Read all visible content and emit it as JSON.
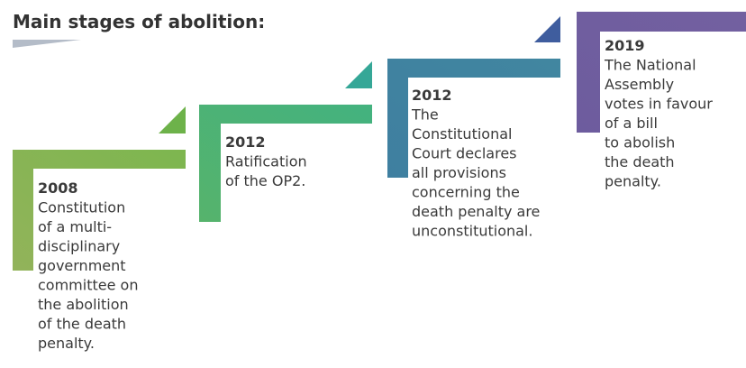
{
  "title": "Main stages of abolition:",
  "stages": [
    {
      "year": "2008",
      "lines": [
        "Constitution",
        "of a multi-",
        "disciplinary",
        "government",
        "committee on",
        "the abolition",
        "of the death",
        "penalty."
      ]
    },
    {
      "year": "2012",
      "lines": [
        "Ratification",
        "of the OP2."
      ]
    },
    {
      "year": "2012",
      "lines": [
        "The",
        "Constitutional",
        "Court declares",
        "all provisions",
        "concerning the",
        "death penalty are",
        "unconstitutional."
      ]
    },
    {
      "year": "2019",
      "lines": [
        "The National",
        "Assembly",
        "votes in favour",
        "of a bill",
        "to abolish",
        "the death",
        "penalty."
      ]
    }
  ]
}
